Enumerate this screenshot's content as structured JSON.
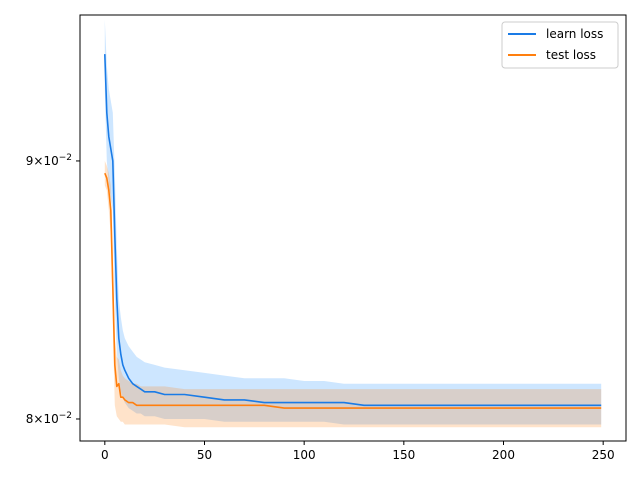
{
  "chart_data": {
    "type": "line",
    "title": "",
    "xlabel": "",
    "ylabel": "",
    "xlim": [
      -12.45,
      261.45
    ],
    "ylim": [
      0.0792,
      0.0962
    ],
    "yscale": "log",
    "grid": false,
    "legend_position": "top-right",
    "x_ticks": [
      0,
      50,
      100,
      150,
      200,
      250
    ],
    "x_tick_labels": [
      "0",
      "50",
      "100",
      "150",
      "200",
      "250"
    ],
    "y_ticks": [
      0.08,
      0.09
    ],
    "y_tick_labels": [
      {
        "mantissa": "8",
        "exponent": "−2"
      },
      {
        "mantissa": "9",
        "exponent": "−2"
      }
    ],
    "series": [
      {
        "name": "learn loss",
        "color": "#1a7be6",
        "band_color": "#1a8cff",
        "x": [
          0,
          1,
          2,
          3,
          4,
          5,
          6,
          7,
          8,
          9,
          10,
          12,
          14,
          16,
          18,
          20,
          25,
          30,
          40,
          50,
          60,
          70,
          80,
          90,
          100,
          110,
          120,
          130,
          140,
          150,
          160,
          170,
          180,
          190,
          200,
          210,
          220,
          230,
          240,
          249
        ],
        "mean": [
          0.0945,
          0.092,
          0.091,
          0.0905,
          0.09,
          0.087,
          0.0845,
          0.083,
          0.0824,
          0.082,
          0.0818,
          0.0815,
          0.0813,
          0.0812,
          0.0811,
          0.081,
          0.081,
          0.0809,
          0.0809,
          0.0808,
          0.0807,
          0.0807,
          0.0806,
          0.0806,
          0.0806,
          0.0806,
          0.0806,
          0.0805,
          0.0805,
          0.0805,
          0.0805,
          0.0805,
          0.0805,
          0.0805,
          0.0805,
          0.0805,
          0.0805,
          0.0805,
          0.0805,
          0.0805
        ],
        "lower": [
          0.093,
          0.09,
          0.089,
          0.0885,
          0.088,
          0.0845,
          0.0825,
          0.0815,
          0.081,
          0.0808,
          0.0806,
          0.0804,
          0.0803,
          0.0802,
          0.0802,
          0.0801,
          0.0801,
          0.08,
          0.08,
          0.08,
          0.0799,
          0.0799,
          0.0799,
          0.0799,
          0.0799,
          0.0799,
          0.0798,
          0.0798,
          0.0798,
          0.0798,
          0.0798,
          0.0798,
          0.0798,
          0.0798,
          0.0798,
          0.0798,
          0.0798,
          0.0798,
          0.0798,
          0.0798
        ],
        "upper": [
          0.096,
          0.094,
          0.093,
          0.0925,
          0.092,
          0.0895,
          0.0865,
          0.0845,
          0.0838,
          0.0833,
          0.083,
          0.0827,
          0.0825,
          0.0823,
          0.0822,
          0.0821,
          0.082,
          0.0819,
          0.0818,
          0.0817,
          0.0816,
          0.0815,
          0.0815,
          0.0815,
          0.0814,
          0.0814,
          0.0813,
          0.0813,
          0.0813,
          0.0813,
          0.0813,
          0.0813,
          0.0813,
          0.0813,
          0.0813,
          0.0813,
          0.0813,
          0.0813,
          0.0813,
          0.0813
        ]
      },
      {
        "name": "test loss",
        "color": "#ff7f0e",
        "band_color": "#ff7f0e",
        "x": [
          0,
          1,
          2,
          3,
          4,
          5,
          6,
          7,
          8,
          9,
          10,
          12,
          14,
          16,
          18,
          20,
          25,
          30,
          40,
          50,
          60,
          70,
          80,
          90,
          100,
          110,
          120,
          130,
          140,
          150,
          160,
          170,
          180,
          190,
          200,
          210,
          220,
          230,
          240,
          249
        ],
        "mean": [
          0.0895,
          0.0893,
          0.0888,
          0.088,
          0.085,
          0.082,
          0.0812,
          0.0813,
          0.0808,
          0.0808,
          0.0807,
          0.0806,
          0.0806,
          0.0805,
          0.0805,
          0.0805,
          0.0805,
          0.0805,
          0.0805,
          0.0805,
          0.0805,
          0.0805,
          0.0805,
          0.0804,
          0.0804,
          0.0804,
          0.0804,
          0.0804,
          0.0804,
          0.0804,
          0.0804,
          0.0804,
          0.0804,
          0.0804,
          0.0804,
          0.0804,
          0.0804,
          0.0804,
          0.0804,
          0.0804
        ],
        "lower": [
          0.089,
          0.0888,
          0.088,
          0.087,
          0.0835,
          0.0805,
          0.0801,
          0.08,
          0.0799,
          0.0799,
          0.0798,
          0.0798,
          0.0798,
          0.0798,
          0.0798,
          0.0798,
          0.0798,
          0.0798,
          0.0797,
          0.0797,
          0.0797,
          0.0797,
          0.0797,
          0.0797,
          0.0797,
          0.0797,
          0.0797,
          0.0797,
          0.0797,
          0.0797,
          0.0797,
          0.0797,
          0.0797,
          0.0797,
          0.0797,
          0.0797,
          0.0797,
          0.0797,
          0.0797,
          0.0797
        ],
        "upper": [
          0.09,
          0.0898,
          0.0895,
          0.089,
          0.0865,
          0.083,
          0.0823,
          0.0822,
          0.0818,
          0.0816,
          0.0815,
          0.0814,
          0.0813,
          0.0813,
          0.0812,
          0.0812,
          0.0812,
          0.0812,
          0.0811,
          0.0811,
          0.0811,
          0.0811,
          0.0811,
          0.0811,
          0.0811,
          0.0811,
          0.0811,
          0.0811,
          0.0811,
          0.0811,
          0.0811,
          0.0811,
          0.0811,
          0.0811,
          0.0811,
          0.0811,
          0.0811,
          0.0811,
          0.0811,
          0.0811
        ]
      }
    ]
  }
}
